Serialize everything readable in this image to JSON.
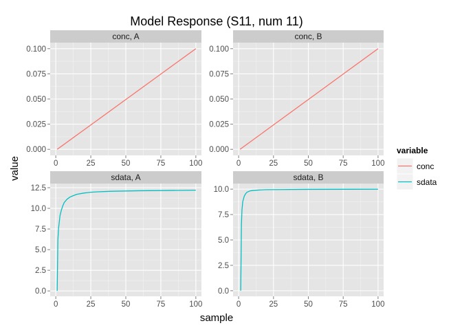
{
  "chart_data": {
    "type": "line",
    "title": "Model Response (S11, num 11)",
    "xlabel": "sample",
    "ylabel": "value",
    "colors": {
      "conc": "#F8766D",
      "sdata": "#00BFC4",
      "panel_bg": "#E5E5E5",
      "strip_bg": "#CCCCCC"
    },
    "legend": {
      "title": "variable",
      "position": "right",
      "entries": [
        {
          "name": "conc",
          "color": "#F8766D"
        },
        {
          "name": "sdata",
          "color": "#00BFC4"
        }
      ]
    },
    "grid": true,
    "xlim": [
      -4,
      104
    ],
    "x_ticks": [
      0,
      25,
      50,
      75,
      100
    ],
    "x_tick_labels": [
      "0",
      "25",
      "50",
      "75",
      "100"
    ],
    "panels": [
      {
        "strip": "conc, A",
        "series": "conc",
        "ylim": [
          -0.006,
          0.106
        ],
        "y_ticks": [
          0,
          0.025,
          0.05,
          0.075,
          0.1
        ],
        "y_tick_labels": [
          "0.000",
          "0.025",
          "0.050",
          "0.075",
          "0.100"
        ],
        "x": [
          1,
          100
        ],
        "y": [
          0.0,
          0.1
        ]
      },
      {
        "strip": "conc, B",
        "series": "conc",
        "ylim": [
          -0.006,
          0.106
        ],
        "y_ticks": [
          0,
          0.025,
          0.05,
          0.075,
          0.1
        ],
        "y_tick_labels": [
          "0.000",
          "0.025",
          "0.050",
          "0.075",
          "0.100"
        ],
        "x": [
          1,
          100
        ],
        "y": [
          0.0,
          0.1
        ]
      },
      {
        "strip": "sdata, A",
        "series": "sdata",
        "ylim": [
          -0.65,
          13.0
        ],
        "y_ticks": [
          0,
          2.5,
          5,
          7.5,
          10,
          12.5
        ],
        "y_tick_labels": [
          "0.0",
          "2.5",
          "5.0",
          "7.5",
          "10.0",
          "12.5"
        ],
        "x": [
          1,
          1.5,
          2,
          3,
          4,
          5,
          6,
          8,
          10,
          12,
          15,
          20,
          25,
          30,
          40,
          50,
          60,
          75,
          100
        ],
        "y": [
          0,
          6.2,
          7.6,
          9.1,
          9.8,
          10.3,
          10.7,
          11.1,
          11.35,
          11.5,
          11.7,
          11.85,
          11.95,
          12.0,
          12.07,
          12.1,
          12.13,
          12.15,
          12.2
        ]
      },
      {
        "strip": "sdata, B",
        "series": "sdata",
        "ylim": [
          -0.55,
          10.55
        ],
        "y_ticks": [
          0,
          2.5,
          5,
          7.5,
          10
        ],
        "y_tick_labels": [
          "0.0",
          "2.5",
          "5.0",
          "7.5",
          "10.0"
        ],
        "x": [
          1.5,
          2,
          2.4,
          3,
          4,
          5,
          6,
          8,
          10,
          15,
          20,
          30,
          50,
          100
        ],
        "y": [
          0,
          6.5,
          8.0,
          8.8,
          9.3,
          9.55,
          9.7,
          9.82,
          9.87,
          9.92,
          9.95,
          9.96,
          9.98,
          9.99
        ]
      }
    ]
  }
}
